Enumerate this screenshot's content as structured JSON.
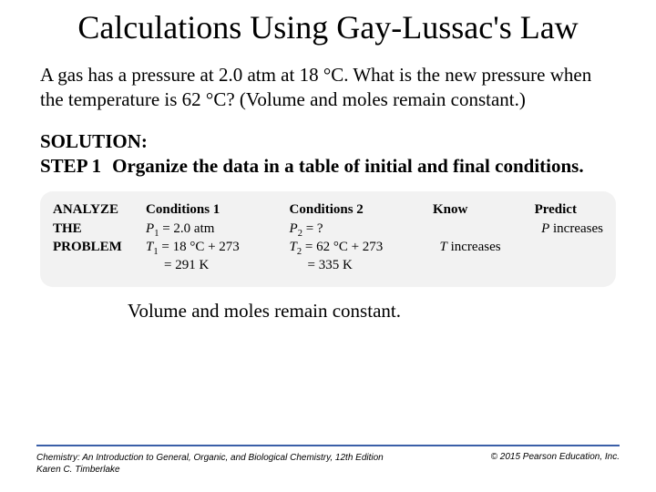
{
  "title": "Calculations Using Gay-Lussac's Law",
  "problem": "A gas has a pressure at 2.0 atm at 18 °C. What is the new pressure when the temperature is 62 °C? (Volume and moles remain constant.)",
  "solution_label": "SOLUTION:",
  "step_label": "STEP 1",
  "step_text": "Organize the data in a table of initial and final conditions.",
  "analyze": {
    "header_lines": [
      "ANALYZE",
      "THE",
      "PROBLEM"
    ],
    "cond1": {
      "header": "Conditions 1",
      "p_var": "P",
      "p_sub": "1",
      "p_rest": " =  2.0 atm",
      "t_var": "T",
      "t_sub": "1",
      "t_rest": " = 18 °C + 273",
      "t_result": "= 291 K"
    },
    "cond2": {
      "header": "Conditions 2",
      "p_var": "P",
      "p_sub": "2",
      "p_rest": " =  ?",
      "t_var": "T",
      "t_sub": "2",
      "t_rest": "  = 62 °C + 273",
      "t_result": "= 335 K"
    },
    "know": {
      "header": "Know",
      "blank": " ",
      "line": " increases",
      "var": "T"
    },
    "predict": {
      "header": "Predict",
      "line": " increases",
      "var": "P"
    }
  },
  "constant_note": "Volume and moles remain constant.",
  "footer": {
    "left_line1": "Chemistry: An Introduction to General, Organic, and Biological Chemistry, 12th Edition",
    "left_line2": "Karen C. Timberlake",
    "right": "© 2015 Pearson Education, Inc."
  }
}
